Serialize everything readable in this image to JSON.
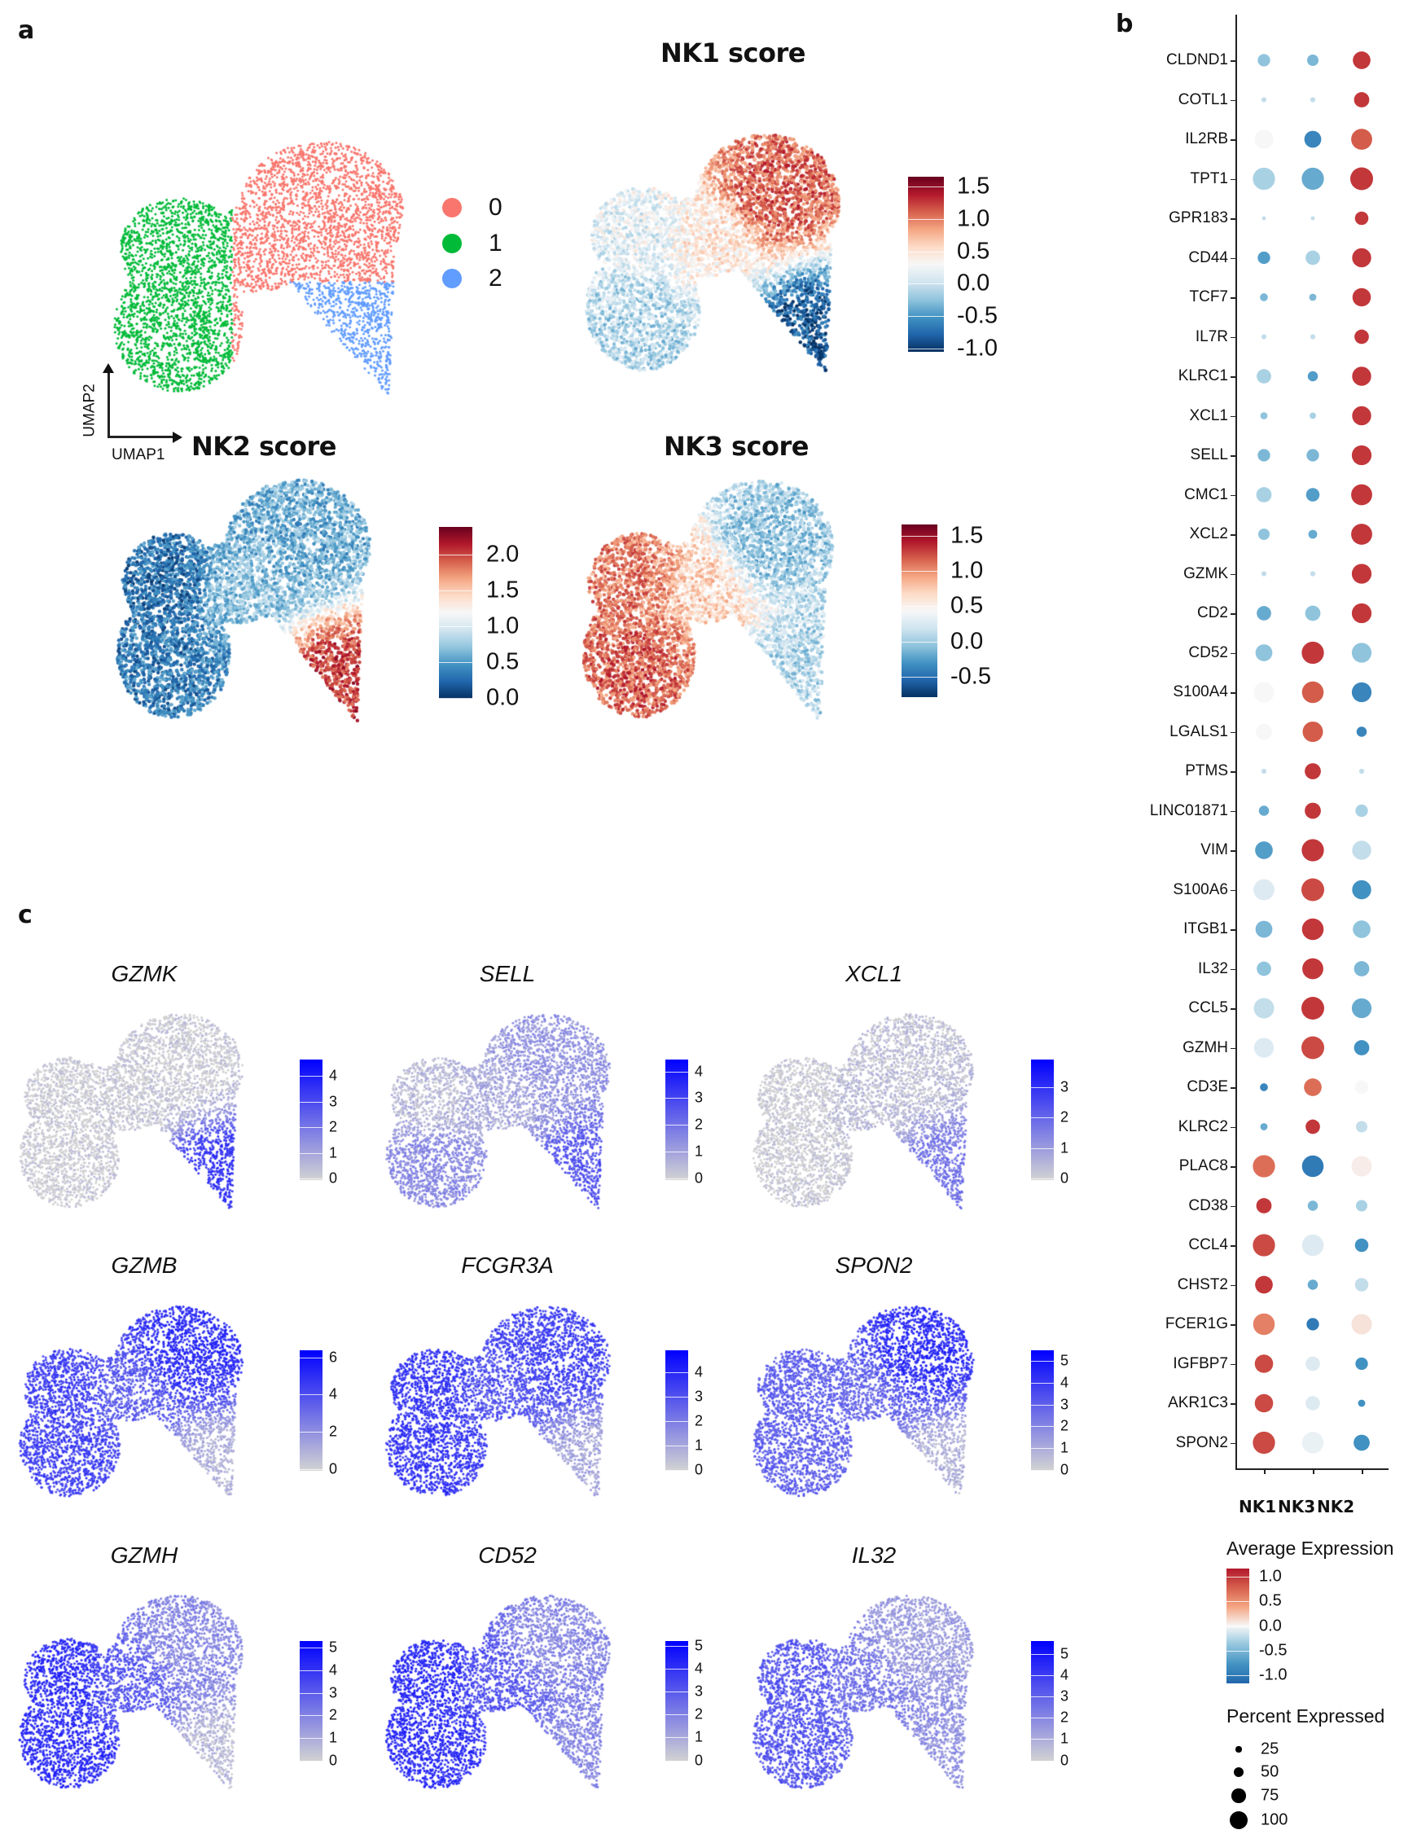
{
  "panel_labels": {
    "a": "a",
    "b": "b",
    "c": "c"
  },
  "umap_axes": {
    "x_label": "UMAP1",
    "y_label": "UMAP2"
  },
  "chart_data": [
    {
      "id": "clusters",
      "panel": "a",
      "type": "scatter",
      "title": "",
      "legend": [
        {
          "label": "0",
          "color": "#f8766d"
        },
        {
          "label": "1",
          "color": "#00ba38"
        },
        {
          "label": "2",
          "color": "#619cff"
        }
      ]
    },
    {
      "id": "nk1",
      "panel": "a",
      "type": "scatter",
      "title": "NK1 score",
      "colormap": "RdBu",
      "colorbar": {
        "range": [
          -1.05,
          1.65
        ],
        "ticks": [
          "1.5",
          "1.0",
          "0.5",
          "0.0",
          "-0.5",
          "-1.0"
        ]
      },
      "relative_expression": {
        "left_lower": 0.35,
        "left_upper": 0.45,
        "center": 0.55,
        "right": 0.8,
        "tail": 0.08
      }
    },
    {
      "id": "nk2",
      "panel": "a",
      "type": "scatter",
      "title": "NK2 score",
      "colormap": "RdBu",
      "colorbar": {
        "range": [
          -0.01,
          2.39
        ],
        "ticks": [
          "2.0",
          "1.5",
          "1.0",
          "0.5",
          "0.0"
        ]
      },
      "relative_expression": {
        "left_lower": 0.15,
        "left_upper": 0.12,
        "center": 0.3,
        "right": 0.25,
        "tail": 0.85
      }
    },
    {
      "id": "nk3",
      "panel": "a",
      "type": "scatter",
      "title": "NK3 score",
      "colormap": "RdBu",
      "colorbar": {
        "range": [
          -0.79,
          1.66
        ],
        "ticks": [
          "1.5",
          "1.0",
          "0.5",
          "0.0",
          "-0.5"
        ]
      },
      "relative_expression": {
        "left_lower": 0.8,
        "left_upper": 0.75,
        "center": 0.6,
        "right": 0.3,
        "tail": 0.35
      }
    },
    {
      "id": "gzmk",
      "panel": "c",
      "type": "scatter",
      "title": "GZMK",
      "colormap": "grey-blue",
      "colorbar": {
        "range": [
          -0.05,
          4.64
        ],
        "ticks": [
          "4",
          "3",
          "2",
          "1",
          "0"
        ]
      },
      "relative_expression": {
        "left_lower": 0.02,
        "left_upper": 0.02,
        "center": 0.04,
        "right": 0.03,
        "tail": 0.75
      }
    },
    {
      "id": "sell",
      "panel": "c",
      "type": "scatter",
      "title": "SELL",
      "colormap": "grey-blue",
      "colorbar": {
        "range": [
          -0.05,
          4.44
        ],
        "ticks": [
          "4",
          "3",
          "2",
          "1",
          "0"
        ]
      },
      "relative_expression": {
        "left_lower": 0.35,
        "left_upper": 0.1,
        "center": 0.2,
        "right": 0.3,
        "tail": 0.6
      }
    },
    {
      "id": "xcl1",
      "panel": "c",
      "type": "scatter",
      "title": "XCL1",
      "colormap": "grey-blue",
      "colorbar": {
        "range": [
          -0.05,
          3.9
        ],
        "ticks": [
          "3",
          "2",
          "1",
          "0"
        ]
      },
      "relative_expression": {
        "left_lower": 0.02,
        "left_upper": 0.02,
        "center": 0.1,
        "right": 0.08,
        "tail": 0.45
      }
    },
    {
      "id": "gzmb",
      "panel": "c",
      "type": "scatter",
      "title": "GZMB",
      "colormap": "grey-blue",
      "colorbar": {
        "range": [
          -0.1,
          6.38
        ],
        "ticks": [
          "6",
          "4",
          "2",
          "0"
        ]
      },
      "relative_expression": {
        "left_lower": 0.7,
        "left_upper": 0.7,
        "center": 0.55,
        "right": 0.8,
        "tail": 0.15
      }
    },
    {
      "id": "fcgr3a",
      "panel": "c",
      "type": "scatter",
      "title": "FCGR3A",
      "colormap": "grey-blue",
      "colorbar": {
        "range": [
          -0.05,
          4.9
        ],
        "ticks": [
          "4",
          "3",
          "2",
          "1",
          "0"
        ]
      },
      "relative_expression": {
        "left_lower": 0.75,
        "left_upper": 0.75,
        "center": 0.6,
        "right": 0.7,
        "tail": 0.2
      }
    },
    {
      "id": "spon2",
      "panel": "c",
      "type": "scatter",
      "title": "SPON2",
      "colormap": "grey-blue",
      "colorbar": {
        "range": [
          -0.05,
          5.5
        ],
        "ticks": [
          "5",
          "4",
          "3",
          "2",
          "1",
          "0"
        ]
      },
      "relative_expression": {
        "left_lower": 0.55,
        "left_upper": 0.55,
        "center": 0.5,
        "right": 0.8,
        "tail": 0.15
      }
    },
    {
      "id": "gzmh",
      "panel": "c",
      "type": "scatter",
      "title": "GZMH",
      "colormap": "grey-blue",
      "colorbar": {
        "range": [
          -0.05,
          5.3
        ],
        "ticks": [
          "5",
          "4",
          "3",
          "2",
          "1",
          "0"
        ]
      },
      "relative_expression": {
        "left_lower": 0.8,
        "left_upper": 0.8,
        "center": 0.6,
        "right": 0.35,
        "tail": 0.1
      }
    },
    {
      "id": "cd52",
      "panel": "c",
      "type": "scatter",
      "title": "CD52",
      "colormap": "grey-blue",
      "colorbar": {
        "range": [
          -0.05,
          5.2
        ],
        "ticks": [
          "5",
          "4",
          "3",
          "2",
          "1",
          "0"
        ]
      },
      "relative_expression": {
        "left_lower": 0.8,
        "left_upper": 0.8,
        "center": 0.6,
        "right": 0.35,
        "tail": 0.35
      }
    },
    {
      "id": "il32",
      "panel": "c",
      "type": "scatter",
      "title": "IL32",
      "colormap": "grey-blue",
      "colorbar": {
        "range": [
          -0.05,
          5.6
        ],
        "ticks": [
          "5",
          "4",
          "3",
          "2",
          "1",
          "0"
        ]
      },
      "relative_expression": {
        "left_lower": 0.6,
        "left_upper": 0.6,
        "center": 0.45,
        "right": 0.25,
        "tail": 0.3
      }
    },
    {
      "id": "dotplot",
      "panel": "b",
      "type": "dot",
      "groups": [
        "NK1",
        "NK3",
        "NK2"
      ],
      "genes": [
        "CLDND1",
        "COTL1",
        "IL2RB",
        "TPT1",
        "GPR183",
        "CD44",
        "TCF7",
        "IL7R",
        "KLRC1",
        "XCL1",
        "SELL",
        "CMC1",
        "XCL2",
        "GZMK",
        "CD2",
        "CD52",
        "S100A4",
        "LGALS1",
        "PTMS",
        "LINC01871",
        "VIM",
        "S100A6",
        "ITGB1",
        "IL32",
        "CCL5",
        "GZMH",
        "CD3E",
        "KLRC2",
        "PLAC8",
        "CD38",
        "CCL4",
        "CHST2",
        "FCER1G",
        "IGFBP7",
        "AKR1C3",
        "SPON2"
      ],
      "avg_expression": [
        [
          -0.4,
          -0.5,
          1.0
        ],
        [
          -0.2,
          -0.2,
          1.0
        ],
        [
          0.0,
          -0.9,
          0.8
        ],
        [
          -0.3,
          -0.6,
          1.0
        ],
        [
          -0.2,
          -0.2,
          1.0
        ],
        [
          -0.7,
          -0.3,
          1.0
        ],
        [
          -0.5,
          -0.5,
          1.0
        ],
        [
          -0.2,
          -0.2,
          1.0
        ],
        [
          -0.3,
          -0.7,
          1.0
        ],
        [
          -0.4,
          -0.3,
          1.0
        ],
        [
          -0.5,
          -0.5,
          1.0
        ],
        [
          -0.3,
          -0.7,
          1.0
        ],
        [
          -0.4,
          -0.6,
          1.0
        ],
        [
          -0.2,
          -0.2,
          1.0
        ],
        [
          -0.6,
          -0.4,
          1.0
        ],
        [
          -0.4,
          1.0,
          -0.4
        ],
        [
          0.0,
          0.8,
          -0.9
        ],
        [
          0.0,
          0.8,
          -0.9
        ],
        [
          -0.2,
          1.0,
          -0.2
        ],
        [
          -0.6,
          1.0,
          -0.3
        ],
        [
          -0.7,
          1.0,
          -0.2
        ],
        [
          -0.1,
          0.9,
          -0.8
        ],
        [
          -0.5,
          1.0,
          -0.4
        ],
        [
          -0.4,
          1.0,
          -0.5
        ],
        [
          -0.2,
          1.0,
          -0.6
        ],
        [
          -0.1,
          0.9,
          -0.8
        ],
        [
          -0.9,
          0.7,
          0.0
        ],
        [
          -0.6,
          1.0,
          -0.2
        ],
        [
          0.7,
          -1.0,
          0.05
        ],
        [
          1.0,
          -0.5,
          -0.3
        ],
        [
          0.9,
          -0.1,
          -0.8
        ],
        [
          1.0,
          -0.6,
          -0.2
        ],
        [
          0.6,
          -1.0,
          0.1
        ],
        [
          0.9,
          -0.1,
          -0.8
        ],
        [
          0.9,
          -0.1,
          -0.8
        ],
        [
          0.9,
          -0.05,
          -0.8
        ]
      ],
      "pct_expressed": [
        [
          30,
          25,
          60
        ],
        [
          5,
          5,
          45
        ],
        [
          70,
          55,
          85
        ],
        [
          95,
          95,
          100
        ],
        [
          3,
          3,
          35
        ],
        [
          30,
          40,
          70
        ],
        [
          12,
          10,
          65
        ],
        [
          5,
          5,
          40
        ],
        [
          40,
          20,
          70
        ],
        [
          10,
          8,
          70
        ],
        [
          30,
          30,
          75
        ],
        [
          45,
          35,
          85
        ],
        [
          25,
          15,
          85
        ],
        [
          5,
          5,
          75
        ],
        [
          40,
          45,
          75
        ],
        [
          55,
          95,
          75
        ],
        [
          80,
          90,
          75
        ],
        [
          50,
          80,
          20
        ],
        [
          5,
          50,
          5
        ],
        [
          20,
          50,
          30
        ],
        [
          60,
          95,
          70
        ],
        [
          85,
          100,
          70
        ],
        [
          55,
          90,
          60
        ],
        [
          40,
          85,
          45
        ],
        [
          80,
          100,
          75
        ],
        [
          75,
          100,
          45
        ],
        [
          12,
          60,
          35
        ],
        [
          10,
          40,
          25
        ],
        [
          95,
          90,
          80
        ],
        [
          45,
          20,
          25
        ],
        [
          95,
          90,
          35
        ],
        [
          60,
          20,
          35
        ],
        [
          90,
          30,
          80
        ],
        [
          65,
          40,
          30
        ],
        [
          65,
          40,
          10
        ],
        [
          95,
          90,
          50
        ]
      ],
      "color_legend": {
        "title": "Average Expression",
        "range": [
          -1.17,
          1.17
        ],
        "ticks": [
          "1.0",
          "0.5",
          "0.0",
          "-0.5",
          "-1.0"
        ]
      },
      "size_legend": {
        "title": "Percent Expressed",
        "values": [
          "25",
          "50",
          "75",
          "100"
        ]
      },
      "colors": {
        "low": "#2166ac",
        "mid": "#f7f7f7",
        "high": "#b2182b"
      }
    }
  ]
}
